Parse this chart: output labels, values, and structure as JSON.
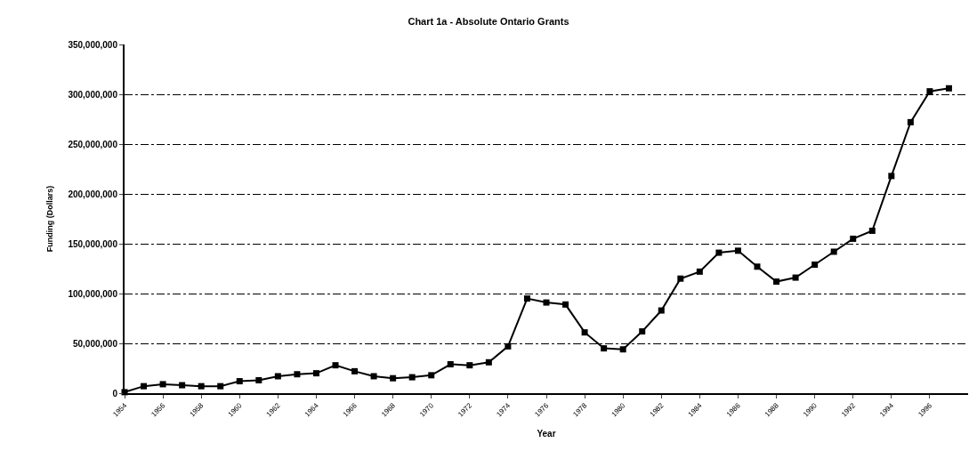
{
  "chart_data": {
    "type": "line",
    "title": "Chart 1a - Absolute Ontario Grants",
    "xlabel": "Year",
    "ylabel": "Funding (Dollars)",
    "x": [
      1954,
      1955,
      1956,
      1957,
      1958,
      1959,
      1960,
      1961,
      1962,
      1963,
      1964,
      1965,
      1966,
      1967,
      1968,
      1969,
      1970,
      1971,
      1972,
      1973,
      1974,
      1975,
      1976,
      1977,
      1978,
      1979,
      1980,
      1981,
      1982,
      1983,
      1984,
      1985,
      1986,
      1987,
      1988,
      1989,
      1990,
      1991,
      1992,
      1993,
      1994,
      1995,
      1996,
      1997
    ],
    "series": [
      {
        "color": "#000000",
        "values": [
          1000000,
          7000000,
          9000000,
          8000000,
          7000000,
          7000000,
          12000000,
          13000000,
          17000000,
          19000000,
          20000000,
          28000000,
          22000000,
          17000000,
          15000000,
          16000000,
          18000000,
          29000000,
          28000000,
          31000000,
          47000000,
          95000000,
          91000000,
          89000000,
          61000000,
          45000000,
          44000000,
          62000000,
          83000000,
          115000000,
          122000000,
          141000000,
          143000000,
          127000000,
          112000000,
          116000000,
          129000000,
          142000000,
          155000000,
          163000000,
          218000000,
          272000000,
          303000000,
          306000000
        ]
      }
    ],
    "xlim": [
      1954,
      1998
    ],
    "xticks": [
      1954,
      1956,
      1958,
      1960,
      1962,
      1964,
      1966,
      1968,
      1970,
      1972,
      1974,
      1976,
      1978,
      1980,
      1982,
      1984,
      1986,
      1988,
      1990,
      1992,
      1994,
      1996
    ],
    "ylim": [
      0,
      350000000
    ],
    "yticks": [
      {
        "value": 0,
        "label": "0"
      },
      {
        "value": 50000000,
        "label": "50,000,000"
      },
      {
        "value": 100000000,
        "label": "100,000,000"
      },
      {
        "value": 150000000,
        "label": "150,000,000"
      },
      {
        "value": 200000000,
        "label": "200,000,000"
      },
      {
        "value": 250000000,
        "label": "250,000,000"
      },
      {
        "value": 300000000,
        "label": "300,000,000"
      },
      {
        "value": 350000000,
        "label": "350,000,000"
      }
    ],
    "grid": "y",
    "legend": false,
    "marker": "square",
    "line_style": "solid"
  }
}
